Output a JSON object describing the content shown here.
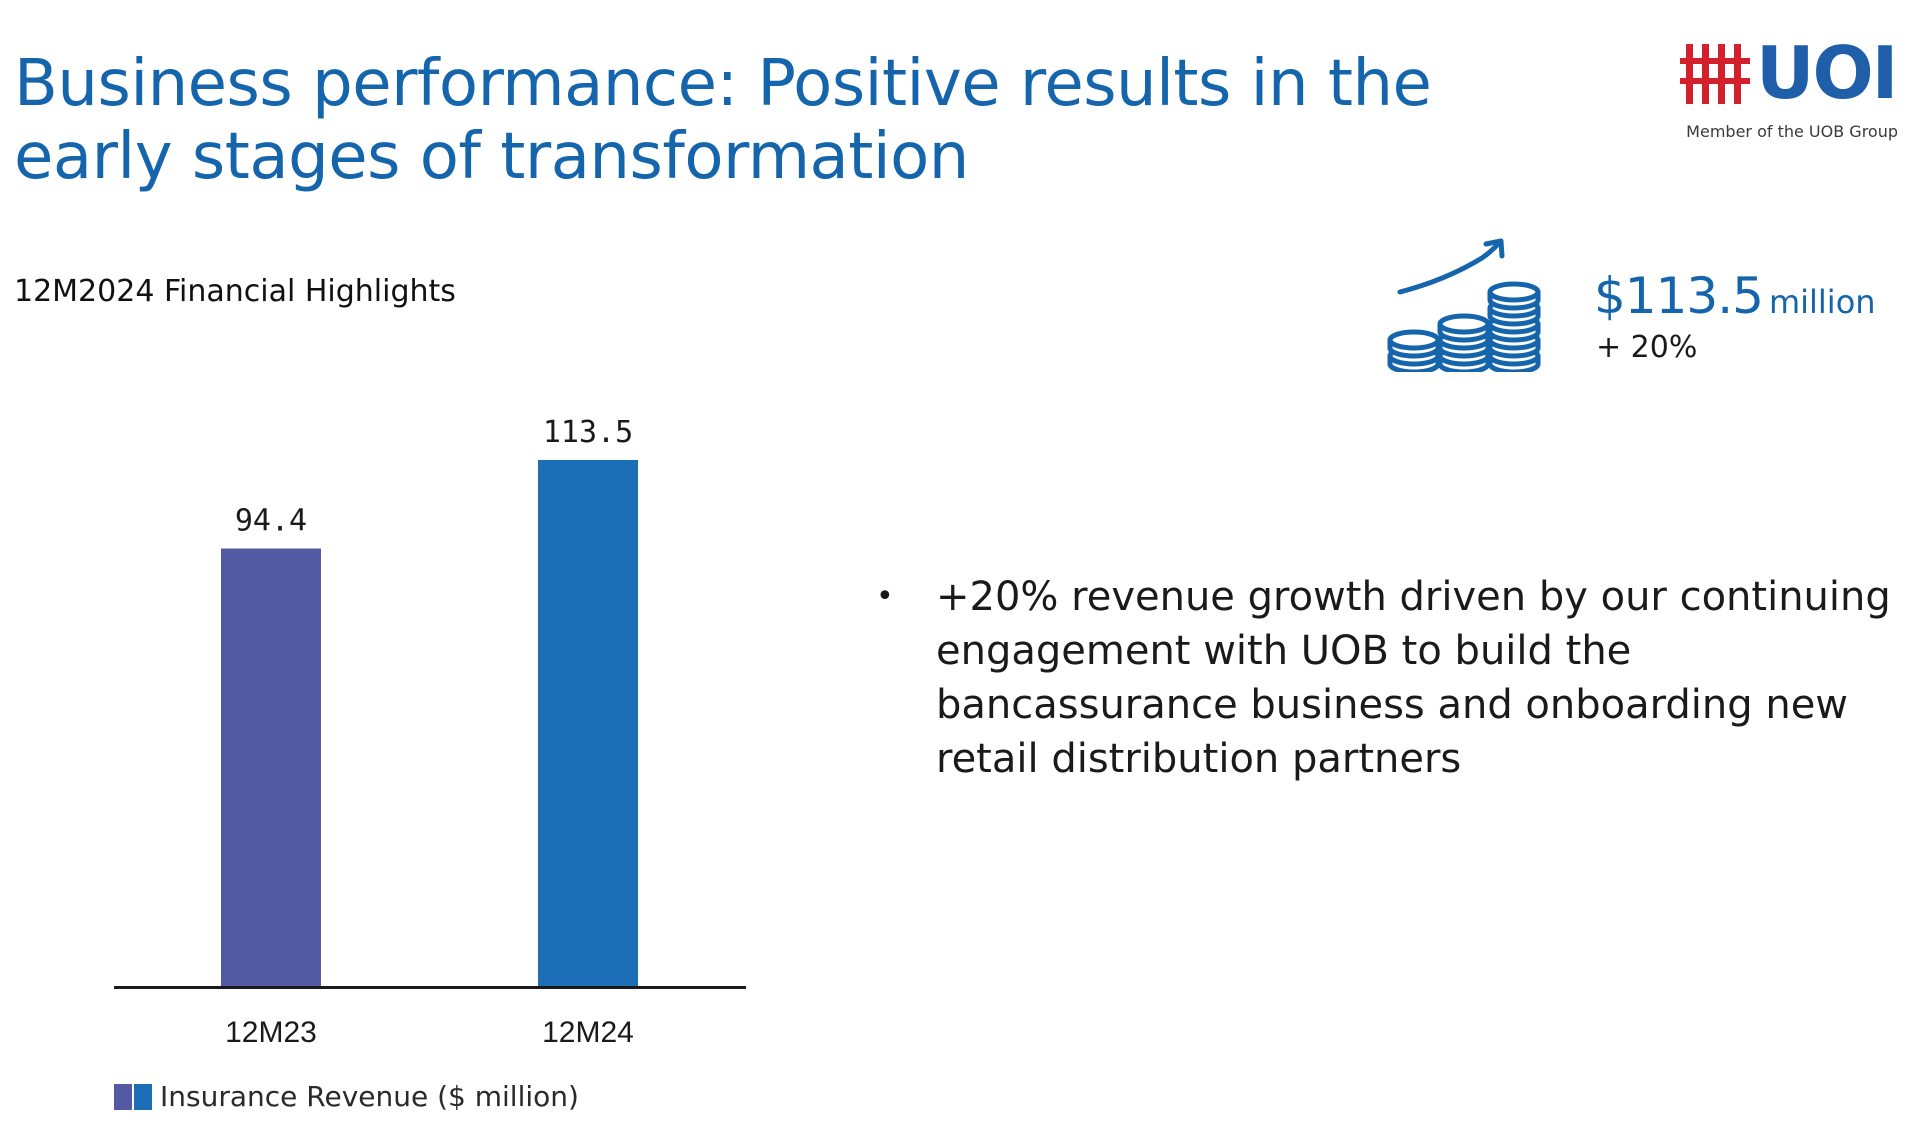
{
  "colors": {
    "title_blue": "#1565ad",
    "bar_1": "#5359a3",
    "bar_2": "#1c6eb6",
    "logo_red": "#d41f2d",
    "logo_blue": "#1f5faa",
    "axis": "#1a1a1a"
  },
  "header": {
    "title": "Business performance: Positive results in the early stages of transformation",
    "subtitle": "12M2024 Financial Highlights"
  },
  "logo": {
    "text": "UOI",
    "tagline": "Member of the UOB Group",
    "icon": "uoi-logo-mark"
  },
  "kpi": {
    "icon": "coins-growth-icon",
    "value": "$113.5",
    "unit": "million",
    "change": "+ 20%"
  },
  "chart_data": {
    "type": "bar",
    "categories": [
      "12M23",
      "12M24"
    ],
    "values": [
      94.4,
      113.5
    ],
    "value_labels": [
      "94.4",
      "113.5"
    ],
    "ylim": [
      0,
      113.5
    ],
    "grid": false,
    "legend": {
      "label": "Insurance Revenue ($ million)",
      "placement": "bottom-left"
    }
  },
  "bullets": [
    "+20% revenue growth driven by our continuing engagement with UOB to build the bancassurance business and onboarding new retail distribution partners"
  ]
}
